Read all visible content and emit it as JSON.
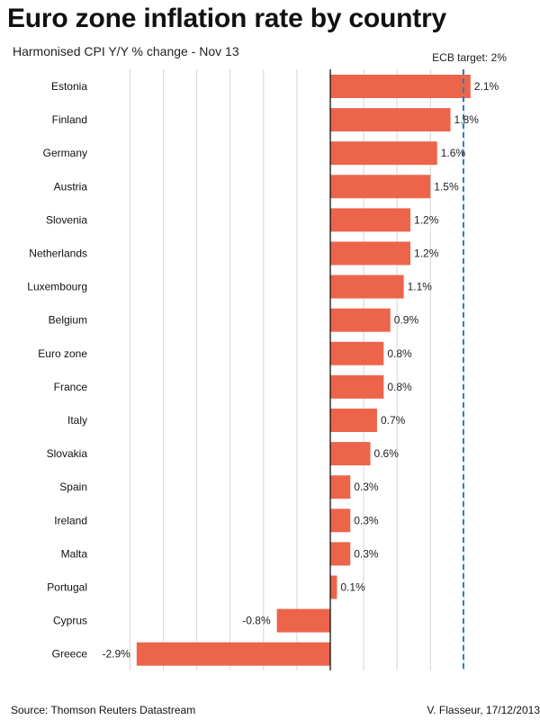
{
  "header": {
    "title": "Euro zone inflation rate by country",
    "subtitle": "Harmonised CPI Y/Y % change - Nov 13"
  },
  "footer": {
    "source": "Source: Thomson Reuters Datastream",
    "credit": "V. Flasseur, 17/12/2013"
  },
  "colors": {
    "bar": "#ec654b",
    "target_line": "#2a7ac0",
    "grid": "#d6d6d6",
    "axis": "#000000"
  },
  "chart_data": {
    "type": "bar",
    "orientation": "horizontal",
    "title": "Euro zone inflation rate by country",
    "subtitle": "Harmonised CPI Y/Y % change - Nov 13",
    "xlabel": "",
    "ylabel": "",
    "xlim": [
      -3.0,
      2.0
    ],
    "grid": true,
    "categories": [
      "Estonia",
      "Finland",
      "Germany",
      "Austria",
      "Slovenia",
      "Netherlands",
      "Luxembourg",
      "Belgium",
      "Euro zone",
      "France",
      "Italy",
      "Slovakia",
      "Spain",
      "Ireland",
      "Malta",
      "Portugal",
      "Cyprus",
      "Greece"
    ],
    "values": [
      2.1,
      1.8,
      1.6,
      1.5,
      1.2,
      1.2,
      1.1,
      0.9,
      0.8,
      0.8,
      0.7,
      0.6,
      0.3,
      0.3,
      0.3,
      0.1,
      -0.8,
      -2.9
    ],
    "value_labels": [
      "2.1%",
      "1.8%",
      "1.6%",
      "1.5%",
      "1.2%",
      "1.2%",
      "1.1%",
      "0.9%",
      "0.8%",
      "0.8%",
      "0.7%",
      "0.6%",
      "0.3%",
      "0.3%",
      "0.3%",
      "0.1%",
      "-0.8%",
      "-2.9%"
    ],
    "reference_line": {
      "label": "ECB target: 2%",
      "value": 2.0,
      "style": "dashed"
    }
  }
}
